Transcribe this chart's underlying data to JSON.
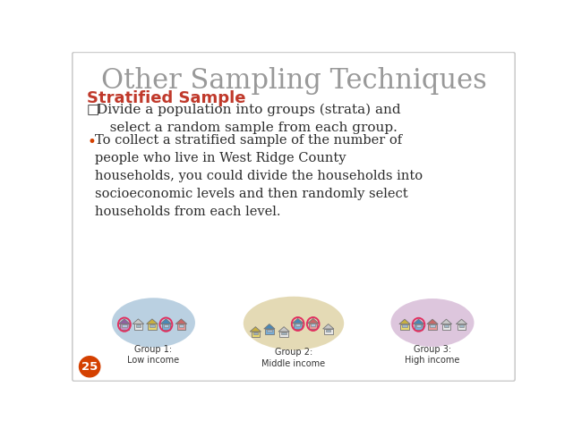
{
  "title": "Other Sampling Techniques",
  "subtitle": "Stratified Sample",
  "bullet1_marker": "□",
  "bullet2_text": "To collect a stratified sample of the number of\npeople who live in West Ridge County\nhouseholds, you could divide the households into\nsocioeconomic levels and then randomly select\nhouseholds from each level.",
  "group1_label": "Group 1:\nLow income",
  "group2_label": "Group 2:\nMiddle income",
  "group3_label": "Group 3:\nHigh income",
  "page_number": "25",
  "bg_color": "#ffffff",
  "title_color": "#999999",
  "subtitle_color": "#c0392b",
  "body_color": "#2c2c2c",
  "page_bg_color": "#d44000",
  "group1_bg": "#aec8dc",
  "group2_bg": "#e0d4a8",
  "group3_bg": "#d8bcd8",
  "border_color": "#cccccc"
}
